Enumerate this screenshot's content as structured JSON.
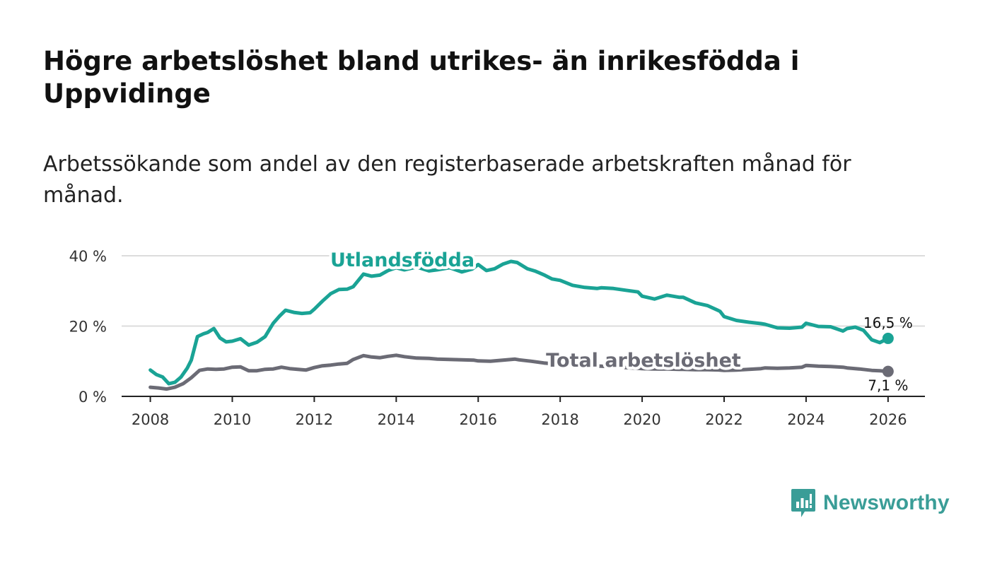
{
  "header": {
    "title": "Högre arbetslöshet bland utrikes- än inrikesfödda i Uppvidinge",
    "subtitle": "Arbetssökande som andel av den registerbaserade arbetskraften månad för månad."
  },
  "brand": {
    "name": "Newsworthy",
    "color": "#3a9d97"
  },
  "chart_data": {
    "type": "line",
    "title": "Högre arbetslöshet bland utrikes- än inrikesfödda i Uppvidinge",
    "xlabel": "",
    "ylabel": "",
    "xlim": [
      2007.3,
      2026.9
    ],
    "ylim": [
      0,
      40
    ],
    "x_ticks": [
      2008,
      2010,
      2012,
      2014,
      2016,
      2018,
      2020,
      2022,
      2024,
      2026
    ],
    "y_ticks": [
      {
        "value": 0,
        "label": "0 %"
      },
      {
        "value": 20,
        "label": "20 %"
      },
      {
        "value": 40,
        "label": "40 %"
      }
    ],
    "grid": true,
    "series": [
      {
        "name": "Utlandsfödda",
        "color": "#1aa395",
        "end_label": "16,5 %",
        "x": [
          2008.0,
          2008.15,
          2008.3,
          2008.45,
          2008.6,
          2008.75,
          2008.9,
          2009.0,
          2009.15,
          2009.3,
          2009.4,
          2009.55,
          2009.7,
          2009.85,
          2010.0,
          2010.2,
          2010.4,
          2010.6,
          2010.8,
          2011.0,
          2011.15,
          2011.3,
          2011.5,
          2011.7,
          2011.9,
          2012.0,
          2012.2,
          2012.4,
          2012.6,
          2012.8,
          2012.95,
          2013.2,
          2013.4,
          2013.6,
          2013.8,
          2014.0,
          2014.2,
          2014.5,
          2014.8,
          2015.0,
          2015.3,
          2015.6,
          2015.85,
          2016.0,
          2016.2,
          2016.4,
          2016.6,
          2016.8,
          2016.95,
          2017.2,
          2017.4,
          2017.6,
          2017.8,
          2018.0,
          2018.3,
          2018.6,
          2018.9,
          2019.0,
          2019.3,
          2019.6,
          2019.9,
          2020.0,
          2020.3,
          2020.6,
          2020.9,
          2021.0,
          2021.3,
          2021.6,
          2021.9,
          2022.0,
          2022.3,
          2022.6,
          2022.9,
          2023.0,
          2023.3,
          2023.6,
          2023.9,
          2024.0,
          2024.3,
          2024.6,
          2024.9,
          2025.0,
          2025.2,
          2025.4,
          2025.6,
          2025.8,
          2026.0
        ],
        "y": [
          7.5,
          6.2,
          5.5,
          3.6,
          4.0,
          5.5,
          8.0,
          10.3,
          17.0,
          17.8,
          18.2,
          19.3,
          16.6,
          15.5,
          15.7,
          16.4,
          14.6,
          15.4,
          17.0,
          20.8,
          22.8,
          24.5,
          23.9,
          23.6,
          23.8,
          24.8,
          27.1,
          29.2,
          30.4,
          30.5,
          31.2,
          34.8,
          34.2,
          34.5,
          35.8,
          36.6,
          36.0,
          36.8,
          35.7,
          36.0,
          36.6,
          35.4,
          36.2,
          37.5,
          35.8,
          36.3,
          37.6,
          38.4,
          38.1,
          36.3,
          35.6,
          34.6,
          33.4,
          33.0,
          31.6,
          31.0,
          30.7,
          30.9,
          30.7,
          30.2,
          29.7,
          28.5,
          27.7,
          28.8,
          28.2,
          28.2,
          26.6,
          25.8,
          24.2,
          22.7,
          21.6,
          21.1,
          20.7,
          20.5,
          19.5,
          19.4,
          19.7,
          20.8,
          19.9,
          19.8,
          18.6,
          19.3,
          19.7,
          18.8,
          16.1,
          15.3,
          16.5
        ]
      },
      {
        "name": "Total arbetslöshet",
        "color": "#6b6b75",
        "end_label": "7,1 %",
        "x": [
          2008.0,
          2008.2,
          2008.4,
          2008.6,
          2008.8,
          2009.0,
          2009.2,
          2009.4,
          2009.6,
          2009.8,
          2010.0,
          2010.2,
          2010.4,
          2010.6,
          2010.8,
          2011.0,
          2011.2,
          2011.4,
          2011.6,
          2011.8,
          2012.0,
          2012.2,
          2012.4,
          2012.6,
          2012.8,
          2012.95,
          2013.2,
          2013.4,
          2013.6,
          2013.8,
          2014.0,
          2014.2,
          2014.5,
          2014.8,
          2015.0,
          2015.3,
          2015.6,
          2015.9,
          2016.0,
          2016.3,
          2016.6,
          2016.9,
          2017.0,
          2017.3,
          2017.6,
          2017.9,
          2018.2,
          2018.5,
          2018.8,
          2019.0,
          2019.3,
          2019.6,
          2019.9,
          2020.0,
          2020.3,
          2020.6,
          2020.9,
          2021.0,
          2021.3,
          2021.6,
          2021.9,
          2022.0,
          2022.3,
          2022.6,
          2022.9,
          2023.0,
          2023.3,
          2023.6,
          2023.9,
          2024.0,
          2024.3,
          2024.6,
          2024.9,
          2025.0,
          2025.3,
          2025.6,
          2025.8,
          2026.0
        ],
        "y": [
          2.6,
          2.4,
          2.1,
          2.6,
          3.6,
          5.3,
          7.4,
          7.8,
          7.7,
          7.8,
          8.3,
          8.4,
          7.3,
          7.3,
          7.7,
          7.8,
          8.3,
          7.9,
          7.7,
          7.5,
          8.2,
          8.7,
          8.9,
          9.2,
          9.4,
          10.5,
          11.6,
          11.2,
          11.0,
          11.4,
          11.7,
          11.3,
          10.9,
          10.8,
          10.6,
          10.5,
          10.4,
          10.3,
          10.1,
          10.0,
          10.3,
          10.6,
          10.4,
          10.0,
          9.5,
          9.2,
          9.0,
          8.9,
          8.7,
          8.6,
          8.4,
          8.2,
          8.0,
          7.9,
          7.8,
          7.8,
          7.7,
          7.7,
          7.6,
          7.6,
          7.5,
          7.4,
          7.5,
          7.7,
          7.9,
          8.1,
          8.0,
          8.1,
          8.3,
          8.8,
          8.6,
          8.5,
          8.3,
          8.1,
          7.8,
          7.4,
          7.3,
          7.1
        ]
      }
    ]
  }
}
